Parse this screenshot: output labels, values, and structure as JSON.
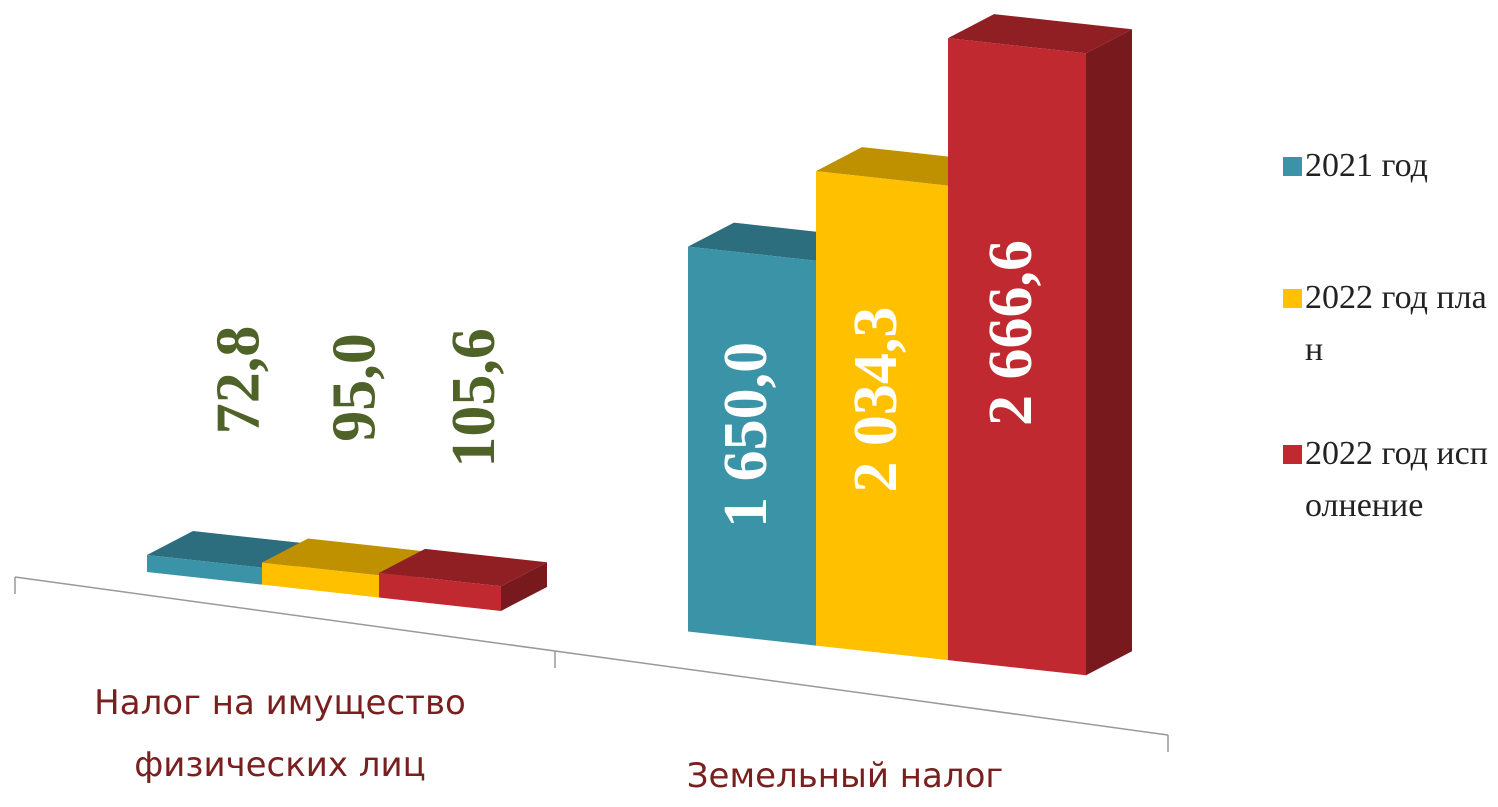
{
  "chart_data": {
    "type": "bar3d",
    "categories": [
      "Налог на имущество физических лиц",
      "Земельный налог"
    ],
    "series": [
      {
        "name": "2021 год",
        "color": "#3b93a8",
        "values": [
          72.8,
          1650.0
        ],
        "value_labels": [
          "72,8",
          "1 650,0"
        ]
      },
      {
        "name": "2022 год план",
        "color": "#ffc000",
        "values": [
          95.0,
          2034.3
        ],
        "value_labels": [
          "95,0",
          "2 034,3"
        ]
      },
      {
        "name": "2022 год исполнение",
        "color": "#c0292f",
        "values": [
          105.6,
          2666.6
        ],
        "value_labels": [
          "105,6",
          "2 666,6"
        ]
      }
    ],
    "legend": "right"
  }
}
